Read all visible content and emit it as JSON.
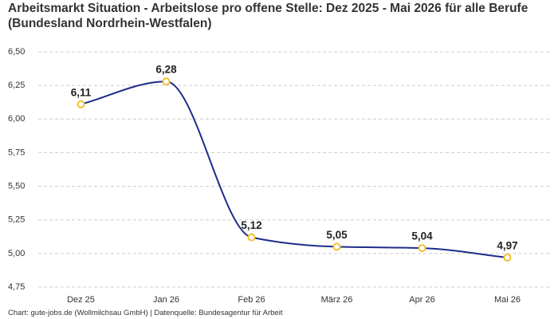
{
  "chart_data": {
    "type": "line",
    "title": "Arbeitsmarkt Situation - Arbeitslose pro offene Stelle: Dez 2025 - Mai 2026 für alle Berufe (Bundesland Nordrhein-Westfalen)",
    "categories": [
      "Dez 25",
      "Jan 26",
      "Feb 26",
      "März 26",
      "Apr 26",
      "Mai 26"
    ],
    "series": [
      {
        "color": "#1f2d8a",
        "marker_color": "#f2c12e",
        "values": [
          6.11,
          6.28,
          5.12,
          5.05,
          5.04,
          4.97
        ],
        "value_labels": [
          "6,11",
          "6,28",
          "5,12",
          "5,05",
          "5,04",
          "4,97"
        ]
      }
    ],
    "ylim": [
      4.75,
      6.5
    ],
    "yticks": [
      {
        "value": 4.75,
        "label": "4,75"
      },
      {
        "value": 5,
        "label": "5,00"
      },
      {
        "value": 5.25,
        "label": "5,25"
      },
      {
        "value": 5.5,
        "label": "5,50"
      },
      {
        "value": 5.75,
        "label": "5,75"
      },
      {
        "value": 6,
        "label": "6,00"
      },
      {
        "value": 6.25,
        "label": "6,25"
      },
      {
        "value": 6.5,
        "label": "6,50"
      }
    ],
    "grid": true,
    "source": "Chart: gute-jobs.de (Wollmilchsau GmbH) | Datenquelle: Bundesagentur für Arbeit"
  }
}
